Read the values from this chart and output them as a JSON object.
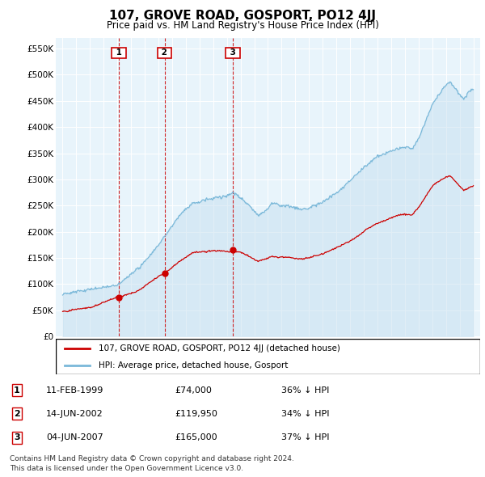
{
  "title": "107, GROVE ROAD, GOSPORT, PO12 4JJ",
  "subtitle": "Price paid vs. HM Land Registry's House Price Index (HPI)",
  "address_label": "107, GROVE ROAD, GOSPORT, PO12 4JJ (detached house)",
  "hpi_label": "HPI: Average price, detached house, Gosport",
  "footer1": "Contains HM Land Registry data © Crown copyright and database right 2024.",
  "footer2": "This data is licensed under the Open Government Licence v3.0.",
  "sales": [
    {
      "num": 1,
      "date": "11-FEB-1999",
      "price": 74000,
      "pct": "36% ↓ HPI",
      "year": 1999.12
    },
    {
      "num": 2,
      "date": "14-JUN-2002",
      "price": 119950,
      "pct": "34% ↓ HPI",
      "year": 2002.45
    },
    {
      "num": 3,
      "date": "04-JUN-2007",
      "price": 165000,
      "pct": "37% ↓ HPI",
      "year": 2007.43
    }
  ],
  "hpi_color": "#7ab8d9",
  "hpi_fill_color": "#ddeeff",
  "price_color": "#cc0000",
  "marker_color": "#cc0000",
  "ylim": [
    0,
    570000
  ],
  "yticks": [
    0,
    50000,
    100000,
    150000,
    200000,
    250000,
    300000,
    350000,
    400000,
    450000,
    500000,
    550000
  ],
  "ytick_labels": [
    "£0",
    "£50K",
    "£100K",
    "£150K",
    "£200K",
    "£250K",
    "£300K",
    "£350K",
    "£400K",
    "£450K",
    "£500K",
    "£550K"
  ],
  "xlim_start": 1994.5,
  "xlim_end": 2025.5,
  "xticks": [
    1995,
    1996,
    1997,
    1998,
    1999,
    2000,
    2001,
    2002,
    2003,
    2004,
    2005,
    2006,
    2007,
    2008,
    2009,
    2010,
    2011,
    2012,
    2013,
    2014,
    2015,
    2016,
    2017,
    2018,
    2019,
    2020,
    2021,
    2022,
    2023,
    2024,
    2025
  ]
}
